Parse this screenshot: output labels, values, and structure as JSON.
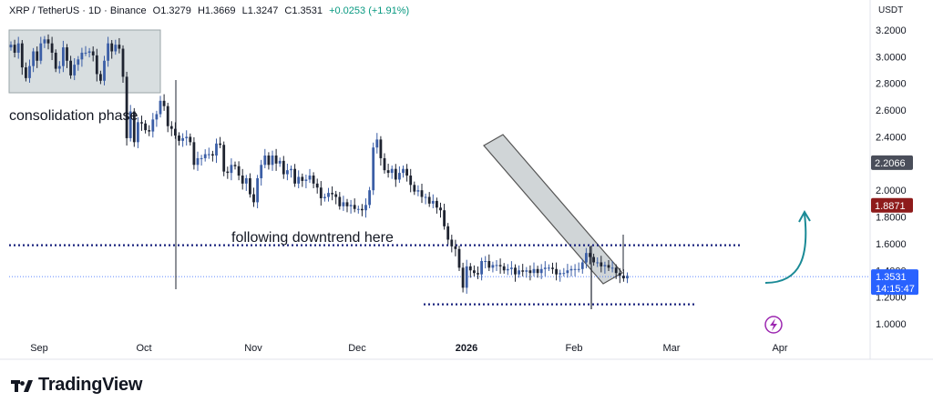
{
  "header": {
    "symbol": "XRP / TetherUS · 1D · Binance",
    "open": "O1.3279",
    "high": "H1.3669",
    "low": "L1.3247",
    "close": "C1.3531",
    "change": "+0.0253 (+1.91%)"
  },
  "currency": "USDT",
  "brand": "TradingView",
  "chart_data": {
    "type": "candlestick",
    "y_ticks": [
      "3.2000",
      "3.0000",
      "2.8000",
      "2.6000",
      "2.4000",
      "2.2000",
      "2.0000",
      "1.8000",
      "1.6000",
      "1.4000",
      "1.2000",
      "1.0000"
    ],
    "x_ticks": [
      "Sep",
      "Oct",
      "Nov",
      "Dec",
      "2026",
      "Feb",
      "Mar",
      "Apr"
    ],
    "ylim": [
      0.92,
      3.25
    ],
    "last_price": {
      "value": 1.3531,
      "label": "1.3531",
      "countdown": "14:15:47",
      "color": "#2962ff"
    },
    "price_markers": [
      {
        "value": 2.2066,
        "label": "2.2066",
        "color": "#4a4e5a"
      },
      {
        "value": 1.8871,
        "label": "1.8871",
        "color": "#8e1b1b"
      }
    ],
    "annotations": [
      {
        "text": "consolidation phase"
      },
      {
        "text": "following downtrend here"
      }
    ],
    "levels": {
      "resistance": 1.5,
      "support": 1.2
    },
    "closes": [
      3.09,
      3.03,
      3.1,
      2.92,
      2.84,
      2.93,
      3.04,
      2.97,
      3.1,
      3.13,
      3.1,
      3.03,
      2.91,
      2.93,
      3.07,
      2.97,
      2.86,
      2.94,
      2.98,
      3.03,
      3.03,
      3.04,
      3.01,
      2.87,
      2.82,
      2.97,
      3.1,
      3.04,
      3.09,
      3.06,
      2.85,
      2.39,
      2.59,
      2.36,
      2.51,
      2.5,
      2.45,
      2.44,
      2.53,
      2.57,
      2.67,
      2.63,
      2.48,
      2.46,
      2.41,
      2.37,
      2.39,
      2.4,
      2.36,
      2.19,
      2.24,
      2.24,
      2.27,
      2.27,
      2.26,
      2.35,
      2.34,
      2.14,
      2.13,
      2.19,
      2.18,
      2.11,
      2.05,
      2.09,
      1.97,
      1.91,
      2.09,
      2.19,
      2.26,
      2.19,
      2.26,
      2.2,
      2.22,
      2.12,
      2.15,
      2.16,
      2.05,
      2.1,
      2.07,
      2.08,
      2.11,
      2.05,
      2.02,
      1.94,
      1.95,
      1.98,
      1.97,
      1.95,
      1.88,
      1.91,
      1.88,
      1.89,
      1.86,
      1.86,
      1.85,
      1.89,
      2.0,
      2.32,
      2.38,
      2.24,
      2.15,
      2.13,
      2.16,
      2.08,
      2.13,
      2.16,
      2.11,
      2.04,
      1.99,
      2.0,
      1.95,
      1.95,
      1.9,
      1.92,
      1.87,
      1.85,
      1.73,
      1.63,
      1.58,
      1.56,
      1.42,
      1.27,
      1.43,
      1.4,
      1.38,
      1.37,
      1.47,
      1.47,
      1.42,
      1.44,
      1.44,
      1.43,
      1.4,
      1.41,
      1.42,
      1.37,
      1.4,
      1.39,
      1.4,
      1.38,
      1.41,
      1.38,
      1.41,
      1.42,
      1.42,
      1.41,
      1.37,
      1.38,
      1.38,
      1.4,
      1.41,
      1.41,
      1.41,
      1.46,
      1.53,
      1.5,
      1.46,
      1.46,
      1.43,
      1.44,
      1.42,
      1.42,
      1.38,
      1.36,
      1.34,
      1.36
    ]
  }
}
